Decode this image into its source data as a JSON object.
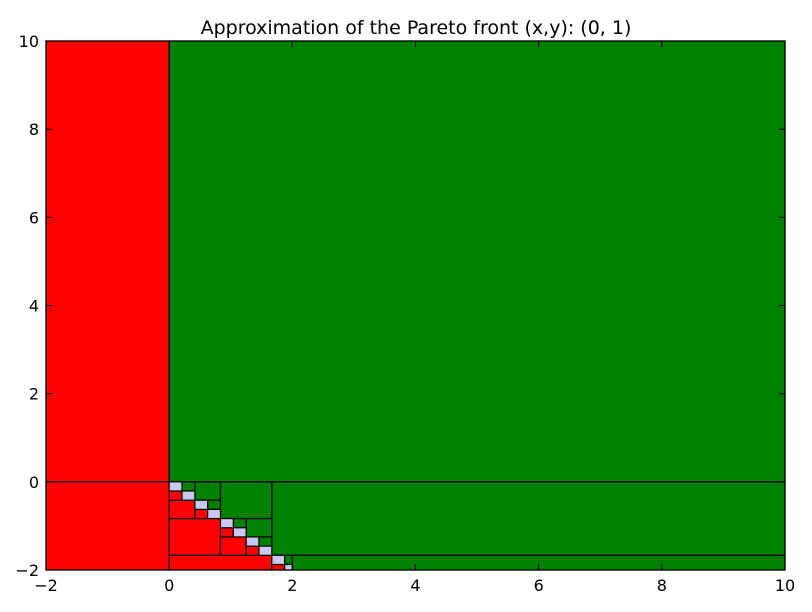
{
  "chart_data": {
    "type": "rectangles",
    "title": "Approximation of the Pareto front (x,y): (0, 1)",
    "xlabel": "",
    "ylabel": "",
    "xlim": [
      -2,
      10
    ],
    "ylim": [
      -2,
      10
    ],
    "xticks": [
      -2,
      0,
      2,
      4,
      6,
      8,
      10
    ],
    "yticks": [
      -2,
      0,
      2,
      4,
      6,
      8,
      10
    ],
    "grid": false,
    "colors": {
      "red": "#ff0000",
      "green": "#008000",
      "lavender": "#c8c8f0",
      "edge": "#000000"
    },
    "rects": [
      {
        "x0": -2,
        "x1": 0,
        "y0": 0,
        "y1": 10,
        "color": "red"
      },
      {
        "x0": -2,
        "x1": 0,
        "y0": -2,
        "y1": 0,
        "color": "red"
      },
      {
        "x0": 0,
        "x1": 10,
        "y0": 0,
        "y1": 10,
        "color": "green"
      },
      {
        "x0": 1.667,
        "x1": 10,
        "y0": -1.667,
        "y1": 0,
        "color": "green"
      },
      {
        "x0": 2,
        "x1": 10,
        "y0": -2,
        "y1": -1.667,
        "color": "green"
      },
      {
        "x0": 0.833,
        "x1": 1.667,
        "y0": -0.833,
        "y1": 0,
        "color": "green"
      },
      {
        "x0": 0.417,
        "x1": 0.833,
        "y0": -0.417,
        "y1": 0,
        "color": "green"
      },
      {
        "x0": 1.25,
        "x1": 1.667,
        "y0": -1.25,
        "y1": -0.833,
        "color": "green"
      },
      {
        "x0": 0.208,
        "x1": 0.417,
        "y0": -0.208,
        "y1": 0,
        "color": "green"
      },
      {
        "x0": 0.625,
        "x1": 0.833,
        "y0": -0.625,
        "y1": -0.417,
        "color": "green"
      },
      {
        "x0": 1.042,
        "x1": 1.25,
        "y0": -1.042,
        "y1": -0.833,
        "color": "green"
      },
      {
        "x0": 1.458,
        "x1": 1.667,
        "y0": -1.458,
        "y1": -1.25,
        "color": "green"
      },
      {
        "x0": 1.875,
        "x1": 2,
        "y0": -1.875,
        "y1": -1.667,
        "color": "green"
      },
      {
        "x0": 0,
        "x1": 0.833,
        "y0": -1.667,
        "y1": -0.833,
        "color": "red"
      },
      {
        "x0": 0,
        "x1": 1.667,
        "y0": -2,
        "y1": -1.667,
        "color": "red"
      },
      {
        "x0": 0,
        "x1": 0.417,
        "y0": -0.833,
        "y1": -0.417,
        "color": "red"
      },
      {
        "x0": 0.833,
        "x1": 1.25,
        "y0": -1.667,
        "y1": -1.25,
        "color": "red"
      },
      {
        "x0": 0,
        "x1": 0.208,
        "y0": -0.417,
        "y1": -0.208,
        "color": "red"
      },
      {
        "x0": 0.417,
        "x1": 0.625,
        "y0": -0.833,
        "y1": -0.625,
        "color": "red"
      },
      {
        "x0": 0.833,
        "x1": 1.042,
        "y0": -1.25,
        "y1": -1.042,
        "color": "red"
      },
      {
        "x0": 1.25,
        "x1": 1.458,
        "y0": -1.667,
        "y1": -1.458,
        "color": "red"
      },
      {
        "x0": 1.667,
        "x1": 1.875,
        "y0": -2,
        "y1": -1.875,
        "color": "red"
      },
      {
        "x0": 0,
        "x1": 0.208,
        "y0": -0.208,
        "y1": 0,
        "color": "lavender"
      },
      {
        "x0": 0.208,
        "x1": 0.417,
        "y0": -0.417,
        "y1": -0.208,
        "color": "lavender"
      },
      {
        "x0": 0.417,
        "x1": 0.625,
        "y0": -0.625,
        "y1": -0.417,
        "color": "lavender"
      },
      {
        "x0": 0.625,
        "x1": 0.833,
        "y0": -0.833,
        "y1": -0.625,
        "color": "lavender"
      },
      {
        "x0": 0.833,
        "x1": 1.042,
        "y0": -1.042,
        "y1": -0.833,
        "color": "lavender"
      },
      {
        "x0": 1.042,
        "x1": 1.25,
        "y0": -1.25,
        "y1": -1.042,
        "color": "lavender"
      },
      {
        "x0": 1.25,
        "x1": 1.458,
        "y0": -1.458,
        "y1": -1.25,
        "color": "lavender"
      },
      {
        "x0": 1.458,
        "x1": 1.667,
        "y0": -1.667,
        "y1": -1.458,
        "color": "lavender"
      },
      {
        "x0": 1.667,
        "x1": 1.875,
        "y0": -1.875,
        "y1": -1.667,
        "color": "lavender"
      },
      {
        "x0": 1.875,
        "x1": 2,
        "y0": -2,
        "y1": -1.875,
        "color": "lavender"
      }
    ]
  }
}
